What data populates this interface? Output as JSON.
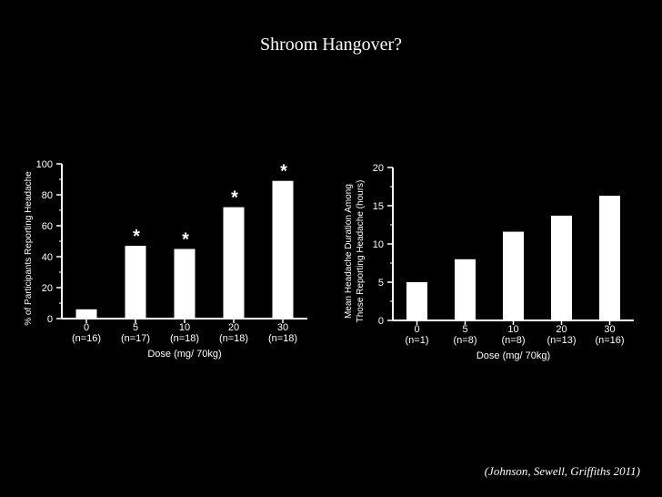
{
  "slide": {
    "title": "Shroom Hangover?",
    "citation": "(Johnson, Sewell, Griffiths 2011)"
  },
  "colors": {
    "background": "#000000",
    "foreground": "#ffffff"
  },
  "chart_data": [
    {
      "type": "bar",
      "title": "",
      "xlabel": "Dose (mg/ 70kg)",
      "ylabel": "% of Participants Reporting Headache",
      "categories": [
        "0",
        "5",
        "10",
        "20",
        "30"
      ],
      "category_n": [
        "(n=16)",
        "(n=17)",
        "(n=18)",
        "(n=18)",
        "(n=18)"
      ],
      "values": [
        6,
        47,
        45,
        72,
        89
      ],
      "significance": [
        "",
        "*",
        "*",
        "*",
        "*"
      ],
      "ylim": [
        0,
        100
      ],
      "yticks": [
        0,
        20,
        40,
        60,
        80,
        100
      ],
      "grid": false
    },
    {
      "type": "bar",
      "title": "",
      "xlabel": "Dose (mg/ 70kg)",
      "ylabel": [
        "Mean Headache Duration Among",
        "Those Reporting Headache (hours)"
      ],
      "categories": [
        "0",
        "5",
        "10",
        "20",
        "30"
      ],
      "category_n": [
        "(n=1)",
        "(n=8)",
        "(n=8)",
        "(n=13)",
        "(n=16)"
      ],
      "values": [
        5,
        8,
        11.6,
        13.7,
        16.3
      ],
      "significance": [
        "",
        "",
        "",
        "",
        ""
      ],
      "ylim": [
        0,
        20
      ],
      "yticks": [
        0,
        5,
        10,
        15,
        20
      ],
      "grid": false
    }
  ]
}
